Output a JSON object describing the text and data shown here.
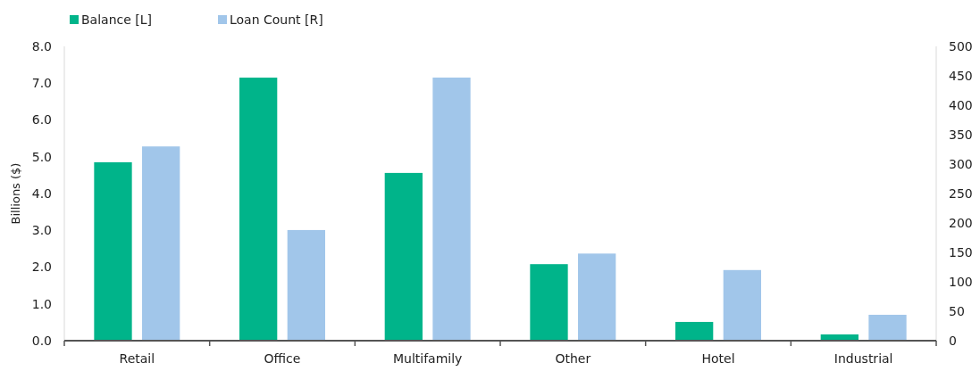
{
  "chart_data": {
    "type": "bar",
    "categories": [
      "Retail",
      "Office",
      "Multifamily",
      "Other",
      "Hotel",
      "Industrial"
    ],
    "series": [
      {
        "name": "Balance [L]",
        "color": "#00b48a",
        "values": [
          4.85,
          7.15,
          4.56,
          2.08,
          0.51,
          0.17
        ]
      },
      {
        "name": "Loan Count [R]",
        "color": "#a1c6ea",
        "axis": "y2",
        "values": [
          330,
          188,
          447,
          148,
          120,
          44
        ]
      }
    ],
    "ylabel": "Billions ($)",
    "ylim": [
      0,
      8
    ],
    "yticks": [
      {
        "value": 0,
        "label": "0.0"
      },
      {
        "value": 1,
        "label": "1.0"
      },
      {
        "value": 2,
        "label": "2.0"
      },
      {
        "value": 3,
        "label": "3.0"
      },
      {
        "value": 4,
        "label": "4.0"
      },
      {
        "value": 5,
        "label": "5.0"
      },
      {
        "value": 6,
        "label": "6.0"
      },
      {
        "value": 7,
        "label": "7.0"
      },
      {
        "value": 8,
        "label": "8.0"
      }
    ],
    "y2lim": [
      0,
      500
    ],
    "y2ticks": [
      0,
      50,
      100,
      150,
      200,
      250,
      300,
      350,
      400,
      450,
      500
    ],
    "legend": "top left",
    "grid": false
  }
}
